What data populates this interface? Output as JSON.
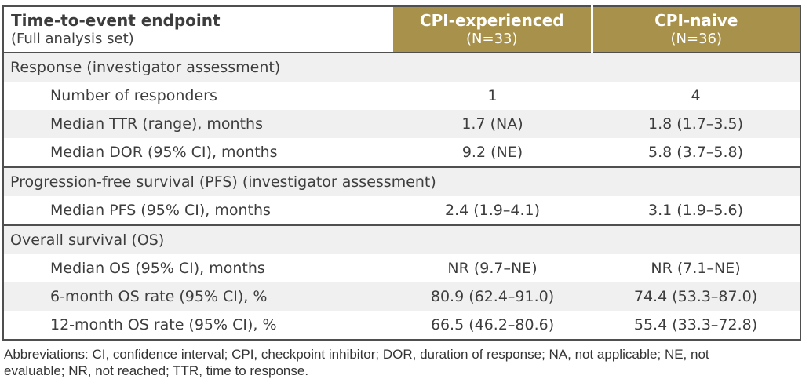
{
  "table": {
    "header": {
      "col1_title": "Time-to-event endpoint",
      "col1_subtitle": "(Full analysis set)",
      "col2_title": "CPI-experienced",
      "col2_subtitle": "(N=33)",
      "col3_title": "CPI-naive",
      "col3_subtitle": "(N=36)"
    },
    "sections": [
      {
        "title": "Response (investigator assessment)",
        "rows": [
          {
            "label": "Number of responders",
            "experienced": "1",
            "naive": "4",
            "shaded": false
          },
          {
            "label": "Median TTR (range), months",
            "experienced": "1.7 (NA)",
            "naive": "1.8 (1.7–3.5)",
            "shaded": true
          },
          {
            "label": "Median DOR (95% CI), months",
            "experienced": "9.2 (NE)",
            "naive": "5.8 (3.7–5.8)",
            "shaded": false
          }
        ]
      },
      {
        "title": "Progression-free survival (PFS) (investigator assessment)",
        "rows": [
          {
            "label": "Median PFS (95% CI), months",
            "experienced": "2.4 (1.9–4.1)",
            "naive": "3.1 (1.9–5.6)",
            "shaded": false
          }
        ]
      },
      {
        "title": "Overall survival (OS)",
        "rows": [
          {
            "label": "Median OS (95% CI), months",
            "experienced": "NR (9.7–NE)",
            "naive": "NR (7.1–NE)",
            "shaded": false
          },
          {
            "label": "6-month OS rate (95% CI), %",
            "experienced": "80.9 (62.4–91.0)",
            "naive": "74.4 (53.3–87.0)",
            "shaded": true
          },
          {
            "label": "12-month OS rate (95% CI), %",
            "experienced": "66.5 (46.2–80.6)",
            "naive": "55.4 (33.3–72.8)",
            "shaded": false
          }
        ]
      }
    ]
  },
  "footnote": "Abbreviations: CI, confidence interval; CPI, checkpoint inhibitor; DOR, duration of response; NA, not applicable; NE, not evaluable; NR, not reached; TTR, time to response.",
  "colors": {
    "header_gold": "#a8914b",
    "stripe_gray": "#f0f0f0",
    "border_dark": "#4f4f4f",
    "header_text": "#ffffff",
    "body_text": "#3d3d3d"
  }
}
